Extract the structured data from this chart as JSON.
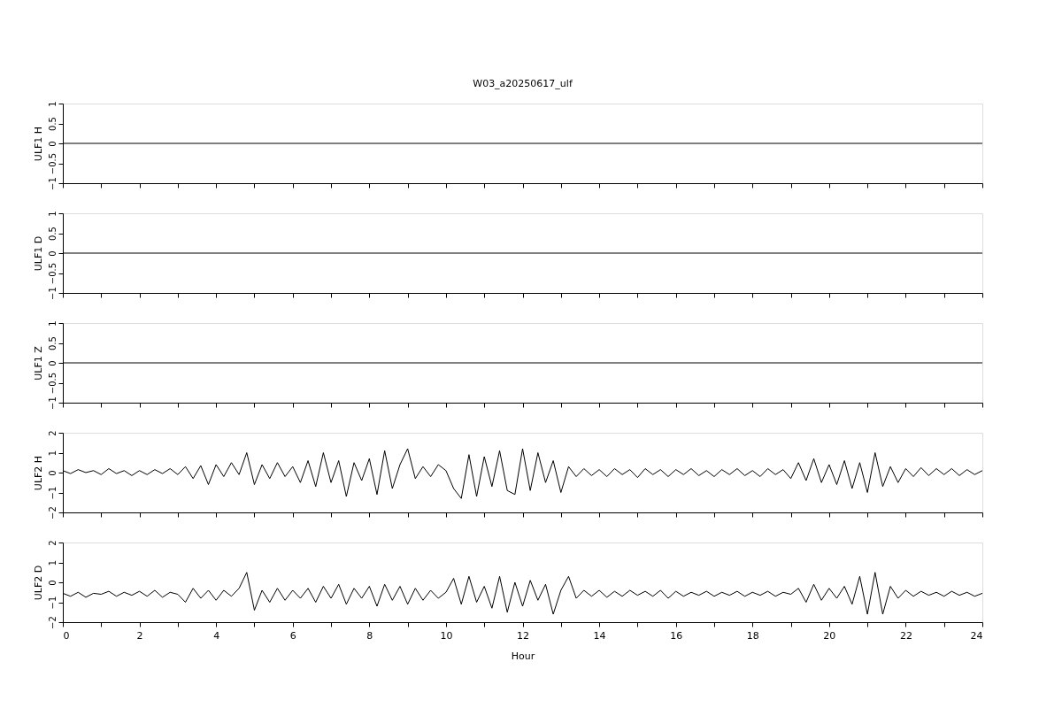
{
  "chart_data": [
    {
      "type": "line",
      "title": "W03_a20250617_ulf",
      "ylabel": "ULF1 H",
      "x": [
        0,
        24
      ],
      "series": [
        {
          "color": "#000000",
          "values": [
            0,
            0
          ]
        }
      ],
      "xlim": [
        0,
        24
      ],
      "xticks": [
        0,
        {
          "value": 1,
          "label": null
        },
        2,
        {
          "value": 3,
          "label": null
        },
        4,
        {
          "value": 5,
          "label": null
        },
        6,
        {
          "value": 7,
          "label": null
        },
        8,
        {
          "value": 9,
          "label": null
        },
        10,
        {
          "value": 11,
          "label": null
        },
        12,
        {
          "value": 13,
          "label": null
        },
        14,
        {
          "value": 15,
          "label": null
        },
        16,
        {
          "value": 17,
          "label": null
        },
        18,
        {
          "value": 19,
          "label": null
        },
        20,
        {
          "value": 21,
          "label": null
        },
        22,
        {
          "value": 23,
          "label": null
        },
        24
      ],
      "ylim": [
        -1,
        1
      ],
      "yticks": [
        -1,
        -0.5,
        0,
        0.5,
        1
      ],
      "tick_labels": "y",
      "grid": false
    },
    {
      "type": "line",
      "ylabel": "ULF1 D",
      "x": [
        0,
        24
      ],
      "series": [
        {
          "color": "#000000",
          "values": [
            0,
            0
          ]
        }
      ],
      "xlim": [
        0,
        24
      ],
      "xticks": [
        0,
        {
          "value": 1,
          "label": null
        },
        2,
        {
          "value": 3,
          "label": null
        },
        4,
        {
          "value": 5,
          "label": null
        },
        6,
        {
          "value": 7,
          "label": null
        },
        8,
        {
          "value": 9,
          "label": null
        },
        10,
        {
          "value": 11,
          "label": null
        },
        12,
        {
          "value": 13,
          "label": null
        },
        14,
        {
          "value": 15,
          "label": null
        },
        16,
        {
          "value": 17,
          "label": null
        },
        18,
        {
          "value": 19,
          "label": null
        },
        20,
        {
          "value": 21,
          "label": null
        },
        22,
        {
          "value": 23,
          "label": null
        },
        24
      ],
      "ylim": [
        -1,
        1
      ],
      "yticks": [
        -1,
        -0.5,
        0,
        0.5,
        1
      ],
      "tick_labels": "y",
      "grid": false
    },
    {
      "type": "line",
      "ylabel": "ULF1 Z",
      "x": [
        0,
        24
      ],
      "series": [
        {
          "color": "#000000",
          "values": [
            0,
            0
          ]
        }
      ],
      "xlim": [
        0,
        24
      ],
      "xticks": [
        0,
        {
          "value": 1,
          "label": null
        },
        2,
        {
          "value": 3,
          "label": null
        },
        4,
        {
          "value": 5,
          "label": null
        },
        6,
        {
          "value": 7,
          "label": null
        },
        8,
        {
          "value": 9,
          "label": null
        },
        10,
        {
          "value": 11,
          "label": null
        },
        12,
        {
          "value": 13,
          "label": null
        },
        14,
        {
          "value": 15,
          "label": null
        },
        16,
        {
          "value": 17,
          "label": null
        },
        18,
        {
          "value": 19,
          "label": null
        },
        20,
        {
          "value": 21,
          "label": null
        },
        22,
        {
          "value": 23,
          "label": null
        },
        24
      ],
      "ylim": [
        -1,
        1
      ],
      "yticks": [
        -1,
        -0.5,
        0,
        0.5,
        1
      ],
      "tick_labels": "y",
      "grid": false
    },
    {
      "type": "line",
      "ylabel": "ULF2 H",
      "x": [
        0,
        0.2,
        0.4,
        0.6,
        0.8,
        1,
        1.2,
        1.4,
        1.6,
        1.8,
        2,
        2.2,
        2.4,
        2.6,
        2.8,
        3,
        3.2,
        3.4,
        3.6,
        3.8,
        4,
        4.2,
        4.4,
        4.6,
        4.8,
        5,
        5.2,
        5.4,
        5.6,
        5.8,
        6,
        6.2,
        6.4,
        6.6,
        6.8,
        7,
        7.2,
        7.4,
        7.6,
        7.8,
        8,
        8.2,
        8.4,
        8.6,
        8.8,
        9,
        9.2,
        9.4,
        9.6,
        9.8,
        10,
        10.2,
        10.4,
        10.6,
        10.8,
        11,
        11.2,
        11.4,
        11.6,
        11.8,
        12,
        12.2,
        12.4,
        12.6,
        12.8,
        13,
        13.2,
        13.4,
        13.6,
        13.8,
        14,
        14.2,
        14.4,
        14.6,
        14.8,
        15,
        15.2,
        15.4,
        15.6,
        15.8,
        16,
        16.2,
        16.4,
        16.6,
        16.8,
        17,
        17.2,
        17.4,
        17.6,
        17.8,
        18,
        18.2,
        18.4,
        18.6,
        18.8,
        19,
        19.2,
        19.4,
        19.6,
        19.8,
        20,
        20.2,
        20.4,
        20.6,
        20.8,
        21,
        21.2,
        21.4,
        21.6,
        21.8,
        22,
        22.2,
        22.4,
        22.6,
        22.8,
        23,
        23.2,
        23.4,
        23.6,
        23.8,
        24
      ],
      "series": [
        {
          "color": "#000000",
          "values": [
            0.1,
            -0.05,
            0.15,
            0,
            0.1,
            -0.1,
            0.2,
            -0.05,
            0.1,
            -0.15,
            0.1,
            -0.1,
            0.15,
            -0.05,
            0.2,
            -0.1,
            0.3,
            -0.3,
            0.35,
            -0.6,
            0.4,
            -0.2,
            0.5,
            -0.1,
            1.0,
            -0.6,
            0.4,
            -0.3,
            0.5,
            -0.2,
            0.3,
            -0.5,
            0.6,
            -0.7,
            1.0,
            -0.5,
            0.6,
            -1.2,
            0.5,
            -0.4,
            0.7,
            -1.1,
            1.1,
            -0.8,
            0.4,
            1.2,
            -0.3,
            0.3,
            -0.2,
            0.4,
            0.1,
            -0.8,
            -1.3,
            0.9,
            -1.2,
            0.8,
            -0.7,
            1.1,
            -0.9,
            -1.1,
            1.2,
            -0.9,
            1.0,
            -0.5,
            0.6,
            -1.0,
            0.3,
            -0.2,
            0.2,
            -0.15,
            0.15,
            -0.2,
            0.2,
            -0.1,
            0.15,
            -0.25,
            0.2,
            -0.1,
            0.15,
            -0.2,
            0.15,
            -0.1,
            0.2,
            -0.15,
            0.1,
            -0.2,
            0.15,
            -0.1,
            0.2,
            -0.15,
            0.1,
            -0.2,
            0.2,
            -0.1,
            0.15,
            -0.3,
            0.5,
            -0.4,
            0.7,
            -0.5,
            0.4,
            -0.6,
            0.6,
            -0.8,
            0.5,
            -1.0,
            1.0,
            -0.7,
            0.3,
            -0.5,
            0.2,
            -0.2,
            0.25,
            -0.15,
            0.2,
            -0.1,
            0.2,
            -0.15,
            0.15,
            -0.1,
            0.1
          ]
        }
      ],
      "xlim": [
        0,
        24
      ],
      "xticks": [
        0,
        {
          "value": 1,
          "label": null
        },
        2,
        {
          "value": 3,
          "label": null
        },
        4,
        {
          "value": 5,
          "label": null
        },
        6,
        {
          "value": 7,
          "label": null
        },
        8,
        {
          "value": 9,
          "label": null
        },
        10,
        {
          "value": 11,
          "label": null
        },
        12,
        {
          "value": 13,
          "label": null
        },
        14,
        {
          "value": 15,
          "label": null
        },
        16,
        {
          "value": 17,
          "label": null
        },
        18,
        {
          "value": 19,
          "label": null
        },
        20,
        {
          "value": 21,
          "label": null
        },
        22,
        {
          "value": 23,
          "label": null
        },
        24
      ],
      "ylim": [
        -2,
        2
      ],
      "yticks": [
        -2,
        -1,
        0,
        1,
        2
      ],
      "tick_labels": "y",
      "grid": false
    },
    {
      "type": "line",
      "ylabel": "ULF2 D",
      "xlabel": "Hour",
      "x": [
        0,
        0.2,
        0.4,
        0.6,
        0.8,
        1,
        1.2,
        1.4,
        1.6,
        1.8,
        2,
        2.2,
        2.4,
        2.6,
        2.8,
        3,
        3.2,
        3.4,
        3.6,
        3.8,
        4,
        4.2,
        4.4,
        4.6,
        4.8,
        5,
        5.2,
        5.4,
        5.6,
        5.8,
        6,
        6.2,
        6.4,
        6.6,
        6.8,
        7,
        7.2,
        7.4,
        7.6,
        7.8,
        8,
        8.2,
        8.4,
        8.6,
        8.8,
        9,
        9.2,
        9.4,
        9.6,
        9.8,
        10,
        10.2,
        10.4,
        10.6,
        10.8,
        11,
        11.2,
        11.4,
        11.6,
        11.8,
        12,
        12.2,
        12.4,
        12.6,
        12.8,
        13,
        13.2,
        13.4,
        13.6,
        13.8,
        14,
        14.2,
        14.4,
        14.6,
        14.8,
        15,
        15.2,
        15.4,
        15.6,
        15.8,
        16,
        16.2,
        16.4,
        16.6,
        16.8,
        17,
        17.2,
        17.4,
        17.6,
        17.8,
        18,
        18.2,
        18.4,
        18.6,
        18.8,
        19,
        19.2,
        19.4,
        19.6,
        19.8,
        20,
        20.2,
        20.4,
        20.6,
        20.8,
        21,
        21.2,
        21.4,
        21.6,
        21.8,
        22,
        22.2,
        22.4,
        22.6,
        22.8,
        23,
        23.2,
        23.4,
        23.6,
        23.8,
        24
      ],
      "series": [
        {
          "color": "#000000",
          "values": [
            -0.55,
            -0.7,
            -0.5,
            -0.75,
            -0.55,
            -0.6,
            -0.45,
            -0.7,
            -0.5,
            -0.65,
            -0.45,
            -0.7,
            -0.4,
            -0.75,
            -0.5,
            -0.6,
            -1.0,
            -0.3,
            -0.8,
            -0.4,
            -0.9,
            -0.4,
            -0.7,
            -0.3,
            0.5,
            -1.4,
            -0.4,
            -1.0,
            -0.3,
            -0.9,
            -0.4,
            -0.8,
            -0.3,
            -1.0,
            -0.2,
            -0.8,
            -0.1,
            -1.1,
            -0.3,
            -0.8,
            -0.2,
            -1.2,
            -0.1,
            -0.9,
            -0.2,
            -1.1,
            -0.3,
            -0.9,
            -0.4,
            -0.8,
            -0.5,
            0.2,
            -1.1,
            0.3,
            -1.0,
            -0.2,
            -1.3,
            0.3,
            -1.5,
            0.0,
            -1.2,
            0.1,
            -0.9,
            -0.1,
            -1.6,
            -0.4,
            0.3,
            -0.8,
            -0.4,
            -0.7,
            -0.4,
            -0.75,
            -0.45,
            -0.7,
            -0.4,
            -0.65,
            -0.45,
            -0.7,
            -0.4,
            -0.8,
            -0.45,
            -0.7,
            -0.5,
            -0.65,
            -0.45,
            -0.7,
            -0.5,
            -0.65,
            -0.45,
            -0.7,
            -0.5,
            -0.65,
            -0.45,
            -0.7,
            -0.5,
            -0.6,
            -0.3,
            -1.0,
            -0.1,
            -0.9,
            -0.3,
            -0.8,
            -0.2,
            -1.1,
            0.3,
            -1.6,
            0.5,
            -1.6,
            -0.2,
            -0.8,
            -0.4,
            -0.7,
            -0.45,
            -0.65,
            -0.5,
            -0.7,
            -0.45,
            -0.65,
            -0.5,
            -0.7,
            -0.55
          ]
        }
      ],
      "xlim": [
        0,
        24
      ],
      "xticks": [
        0,
        {
          "value": 1,
          "label": null
        },
        2,
        {
          "value": 3,
          "label": null
        },
        4,
        {
          "value": 5,
          "label": null
        },
        6,
        {
          "value": 7,
          "label": null
        },
        8,
        {
          "value": 9,
          "label": null
        },
        10,
        {
          "value": 11,
          "label": null
        },
        12,
        {
          "value": 13,
          "label": null
        },
        14,
        {
          "value": 15,
          "label": null
        },
        16,
        {
          "value": 17,
          "label": null
        },
        18,
        {
          "value": 19,
          "label": null
        },
        20,
        {
          "value": 21,
          "label": null
        },
        22,
        {
          "value": 23,
          "label": null
        },
        24
      ],
      "ylim": [
        -2,
        2
      ],
      "yticks": [
        -2,
        -1,
        0,
        1,
        2
      ],
      "grid": false
    }
  ]
}
